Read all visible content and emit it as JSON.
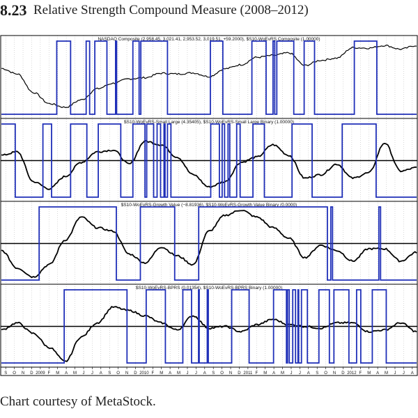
{
  "figure": {
    "number": "8.23",
    "title": "Relative Strength Compound Measure (2008–2012)",
    "credit": "Chart courtesy of MetaStock."
  },
  "colors": {
    "price_line": "#000000",
    "binary_line": "#1f2fb8",
    "zero_line": "#000000",
    "grid": "#b0b0b0",
    "border": "#000000"
  },
  "chart_data": [
    {
      "type": "line",
      "panel": "nasdaq-composite",
      "title": "NASDAQ Composite (2,958.45, 3,021.41, 2,953.52, 3,019.51, +59.2000), $S10-WoEvRS Composite (1.00000)",
      "ylim": [
        1200,
        3100
      ],
      "series": [
        {
          "name": "NASDAQ Composite",
          "role": "line",
          "x": [
            0,
            2,
            4,
            6,
            8,
            10,
            12,
            14,
            16,
            18,
            20,
            22,
            24,
            26,
            28,
            30,
            32,
            34,
            36,
            38,
            40,
            42,
            44,
            46,
            48,
            50,
            52
          ],
          "values": [
            2400,
            2250,
            1750,
            1450,
            1350,
            1550,
            1850,
            2000,
            2120,
            2150,
            2270,
            2250,
            2280,
            2180,
            2390,
            2500,
            2700,
            2750,
            2820,
            2480,
            2620,
            2680,
            2960,
            2950,
            3020,
            2920,
            3020
          ]
        },
        {
          "name": "$S10-WoEvRS Composite",
          "role": "binary",
          "levels": [
            "low",
            "high"
          ],
          "steps": [
            [
              0,
              0
            ],
            [
              16,
              1
            ],
            [
              20,
              0
            ],
            [
              24.5,
              1
            ],
            [
              25.5,
              0
            ],
            [
              27,
              1
            ],
            [
              30.5,
              0
            ],
            [
              33,
              1
            ],
            [
              33.3,
              0
            ],
            [
              38,
              1
            ],
            [
              39.8,
              0
            ],
            [
              40.3,
              1
            ],
            [
              48,
              0
            ],
            [
              60.4,
              1
            ],
            [
              64,
              0
            ],
            [
              72.4,
              1
            ],
            [
              76.5,
              0
            ],
            [
              78.5,
              1
            ],
            [
              79,
              0
            ],
            [
              79.6,
              1
            ],
            [
              84.5,
              0
            ],
            [
              87.5,
              1
            ],
            [
              90.5,
              0
            ],
            [
              102,
              1
            ],
            [
              108.5,
              0
            ],
            [
              120,
              0
            ]
          ]
        }
      ]
    },
    {
      "type": "line",
      "panel": "small-large",
      "title": "$S10-WoEvRS-Small Large (4.35405), $S10-WoEvRS-Small Large Binary (1.00000)",
      "ylim": [
        -1,
        1
      ],
      "series": [
        {
          "name": "$S10-WoEvRS-Small Large",
          "role": "line",
          "x": [
            0,
            2,
            4,
            6,
            8,
            10,
            12,
            14,
            16,
            18,
            20,
            22,
            24,
            26,
            28,
            30,
            32,
            34,
            36,
            38,
            40,
            42,
            44,
            46,
            48,
            50,
            52
          ],
          "values": [
            0.15,
            0.25,
            -0.6,
            -0.8,
            -0.45,
            -0.05,
            0.25,
            0.3,
            -0.1,
            0.55,
            0.45,
            0.1,
            -0.4,
            -0.75,
            -0.6,
            -0.05,
            0.1,
            0.45,
            0.15,
            -0.5,
            -0.4,
            -0.1,
            -0.5,
            -0.35,
            0.5,
            -0.3,
            -0.2
          ]
        },
        {
          "name": "$S10-WoEvRS-Small Large Binary",
          "role": "binary",
          "levels": [
            "low",
            "high"
          ],
          "steps": [
            [
              0,
              1
            ],
            [
              4,
              0
            ],
            [
              12,
              1
            ],
            [
              14.5,
              0
            ],
            [
              20,
              1
            ],
            [
              24.7,
              0
            ],
            [
              28,
              1
            ],
            [
              34.5,
              0
            ],
            [
              38,
              1
            ],
            [
              41.5,
              0
            ],
            [
              42,
              1
            ],
            [
              44,
              0
            ],
            [
              45,
              1
            ],
            [
              46,
              0
            ],
            [
              47,
              1
            ],
            [
              47.3,
              0
            ],
            [
              48,
              1
            ],
            [
              49,
              0
            ],
            [
              60.5,
              1
            ],
            [
              63,
              0
            ],
            [
              63.8,
              1
            ],
            [
              64.5,
              0
            ],
            [
              65.5,
              1
            ],
            [
              66,
              0
            ],
            [
              68,
              1
            ],
            [
              69,
              0
            ],
            [
              72.7,
              1
            ],
            [
              76,
              0
            ],
            [
              84,
              1
            ],
            [
              89.8,
              0
            ],
            [
              98.5,
              1
            ],
            [
              108.3,
              0
            ],
            [
              120,
              0
            ]
          ]
        }
      ]
    },
    {
      "type": "line",
      "panel": "growth-value",
      "title": "$S10-WoEvRS-Growth Value (−8.81936), $S10-WoEvRS-Growth Value Binary (0.0000)",
      "ylim": [
        -1,
        1
      ],
      "series": [
        {
          "name": "$S10-WoEvRS-Growth Value",
          "role": "line",
          "x": [
            0,
            2,
            4,
            6,
            8,
            10,
            12,
            14,
            16,
            18,
            20,
            22,
            24,
            26,
            28,
            30,
            32,
            34,
            36,
            38,
            40,
            42,
            44,
            46,
            48,
            50,
            52
          ],
          "values": [
            -0.2,
            -0.7,
            -0.95,
            -0.6,
            0.1,
            0.75,
            0.45,
            0.35,
            -0.3,
            -0.55,
            -0.1,
            -0.35,
            -0.6,
            0.35,
            0.8,
            0.95,
            0.75,
            0.45,
            0.15,
            -0.4,
            -0.05,
            -0.2,
            -0.5,
            -0.15,
            -0.15,
            -0.5,
            -0.25
          ]
        },
        {
          "name": "$S10-WoEvRS-Growth Value Binary",
          "role": "binary",
          "levels": [
            "low",
            "high"
          ],
          "steps": [
            [
              0,
              0
            ],
            [
              11,
              1
            ],
            [
              33.5,
              0
            ],
            [
              40.5,
              1
            ],
            [
              50.5,
              0
            ],
            [
              57.5,
              1
            ],
            [
              95,
              0
            ],
            [
              96,
              1
            ],
            [
              96.5,
              0
            ],
            [
              110,
              1
            ],
            [
              110.5,
              0
            ],
            [
              121,
              0
            ]
          ]
        }
      ]
    },
    {
      "type": "line",
      "panel": "bprs",
      "title": "$S10-WoEvRS-BPRS (0.01354), $S10-WoEvRS-BPRS Binary (1.00000)",
      "ylim": [
        -1,
        1
      ],
      "series": [
        {
          "name": "$S10-WoEvRS-BPRS",
          "role": "line",
          "x": [
            0,
            2,
            4,
            6,
            8,
            10,
            12,
            14,
            16,
            18,
            20,
            22,
            24,
            26,
            28,
            30,
            32,
            34,
            36,
            38,
            40,
            42,
            44,
            46,
            48,
            50,
            52
          ],
          "values": [
            -0.1,
            0.1,
            -0.2,
            -0.6,
            -1.0,
            -0.3,
            0.1,
            0.55,
            0.45,
            0.3,
            0.1,
            -0.1,
            0.3,
            -0.05,
            0.0,
            -0.15,
            0.05,
            0.2,
            0.05,
            0.0,
            -0.05,
            0.1,
            0.1,
            -0.15,
            -0.1,
            0.1,
            -0.15
          ]
        },
        {
          "name": "$S10-WoEvRS-BPRS Binary",
          "role": "binary",
          "levels": [
            "low",
            "high"
          ],
          "steps": [
            [
              0,
              0
            ],
            [
              18,
              1
            ],
            [
              36,
              0
            ],
            [
              41.5,
              1
            ],
            [
              47,
              0
            ],
            [
              52,
              1
            ],
            [
              54.5,
              0
            ],
            [
              56.5,
              1
            ],
            [
              56.7,
              0
            ],
            [
              59,
              1
            ],
            [
              59.3,
              0
            ],
            [
              66,
              1
            ],
            [
              71,
              0
            ],
            [
              78,
              1
            ],
            [
              81.7,
              0
            ],
            [
              82,
              1
            ],
            [
              82.5,
              0
            ],
            [
              83.5,
              1
            ],
            [
              84.3,
              0
            ],
            [
              85,
              1
            ],
            [
              85.2,
              0
            ],
            [
              86,
              1
            ],
            [
              87.7,
              0
            ],
            [
              91,
              1
            ],
            [
              94,
              0
            ],
            [
              95.3,
              1
            ],
            [
              99.6,
              0
            ],
            [
              101.8,
              1
            ],
            [
              103,
              0
            ],
            [
              106.3,
              1
            ],
            [
              110.3,
              0
            ],
            [
              119,
              0
            ]
          ]
        }
      ]
    }
  ],
  "x_axis": {
    "tick_labels": [
      "S",
      "O",
      "N",
      "D",
      "2009",
      "F",
      "M",
      "A",
      "M",
      "J",
      "J",
      "A",
      "S",
      "O",
      "N",
      "D",
      "2010",
      "F",
      "M",
      "A",
      "M",
      "J",
      "J",
      "A",
      "S",
      "O",
      "N",
      "D",
      "2011",
      "F",
      "M",
      "A",
      "M",
      "J",
      "J",
      "A",
      "S",
      "O",
      "N",
      "D",
      "2012",
      "F",
      "M",
      "A",
      "M",
      "J",
      "J",
      "A"
    ]
  }
}
